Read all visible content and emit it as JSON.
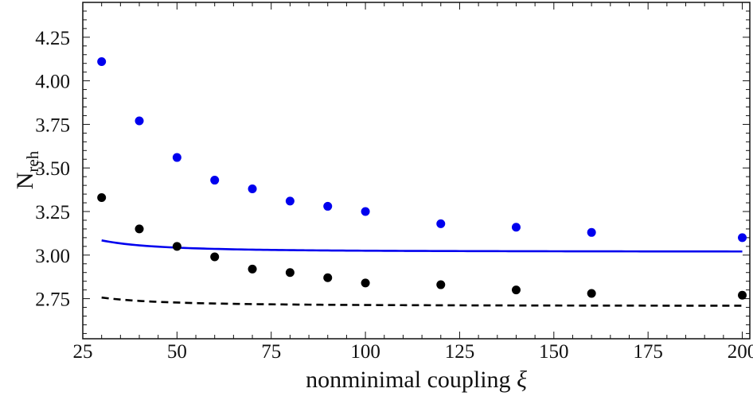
{
  "chart_data": {
    "type": "scatter",
    "xlabel": "nonminimal coupling ξ",
    "xlabel_text": "nonminimal coupling",
    "xlabel_symbol": "ξ",
    "ylabel_main": "N",
    "ylabel_sub": "reh",
    "xlim": [
      25,
      202
    ],
    "ylim": [
      2.52,
      4.45
    ],
    "x_ticks": [
      25,
      50,
      75,
      100,
      125,
      150,
      175,
      200
    ],
    "x_tick_labels": [
      "25",
      "50",
      "75",
      "100",
      "125",
      "150",
      "175",
      "200"
    ],
    "y_ticks": [
      2.75,
      3.0,
      3.25,
      3.5,
      3.75,
      4.0,
      4.25
    ],
    "y_tick_labels": [
      "2.75",
      "3.00",
      "3.25",
      "3.50",
      "3.75",
      "4.00",
      "4.25"
    ],
    "grid": false,
    "series": [
      {
        "color": "#0000ee",
        "line_style": "solid",
        "fit": {
          "a": 3.0193,
          "b": 58.65,
          "c": 1.0
        },
        "points": [
          {
            "x": 30,
            "y": 4.11
          },
          {
            "x": 40,
            "y": 3.77
          },
          {
            "x": 50,
            "y": 3.56
          },
          {
            "x": 60,
            "y": 3.43
          },
          {
            "x": 70,
            "y": 3.38
          },
          {
            "x": 80,
            "y": 3.31
          },
          {
            "x": 90,
            "y": 3.28
          },
          {
            "x": 100,
            "y": 3.25
          },
          {
            "x": 120,
            "y": 3.18
          },
          {
            "x": 140,
            "y": 3.16
          },
          {
            "x": 160,
            "y": 3.13
          },
          {
            "x": 200,
            "y": 3.1
          }
        ]
      },
      {
        "color": "#000000",
        "line_style": "dashed",
        "fit": {
          "a": 2.7077,
          "b": 18.78,
          "c": 0.75
        },
        "points": [
          {
            "x": 30,
            "y": 3.33
          },
          {
            "x": 40,
            "y": 3.15
          },
          {
            "x": 50,
            "y": 3.05
          },
          {
            "x": 60,
            "y": 2.99
          },
          {
            "x": 70,
            "y": 2.92
          },
          {
            "x": 80,
            "y": 2.9
          },
          {
            "x": 90,
            "y": 2.87
          },
          {
            "x": 100,
            "y": 2.84
          },
          {
            "x": 120,
            "y": 2.83
          },
          {
            "x": 140,
            "y": 2.8
          },
          {
            "x": 160,
            "y": 2.78
          },
          {
            "x": 200,
            "y": 2.77
          }
        ]
      }
    ]
  }
}
